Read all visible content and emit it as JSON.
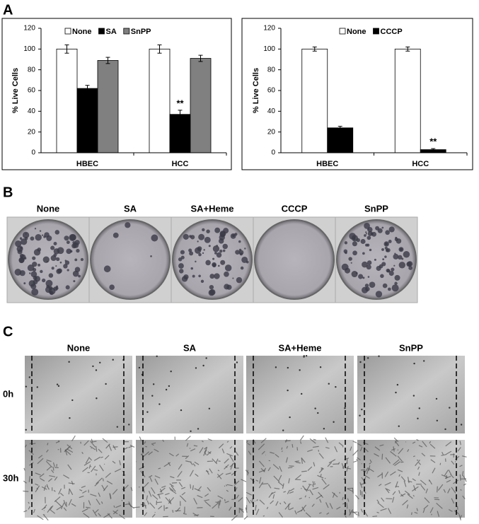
{
  "panel_labels": [
    "A",
    "B",
    "C"
  ],
  "chart_data": [
    {
      "type": "bar",
      "y_label": "% Live Cells",
      "categories": [
        "HBEC",
        "HCC"
      ],
      "series": [
        {
          "name": "None",
          "color": "#ffffff",
          "values": [
            100,
            100
          ],
          "errors": [
            4,
            4
          ]
        },
        {
          "name": "SA",
          "color": "#000000",
          "values": [
            62,
            37
          ],
          "errors": [
            3,
            4
          ]
        },
        {
          "name": "SnPP",
          "color": "#808080",
          "values": [
            89,
            91
          ],
          "errors": [
            3,
            3
          ]
        }
      ],
      "ylim": [
        0,
        120
      ],
      "yticks": [
        0,
        20,
        40,
        60,
        80,
        100,
        120
      ],
      "annotations": [
        "**"
      ],
      "legend": "top"
    },
    {
      "type": "bar",
      "y_label": "% Live Cells",
      "categories": [
        "HBEC",
        "HCC"
      ],
      "series": [
        {
          "name": "None",
          "color": "#ffffff",
          "values": [
            100,
            100
          ],
          "errors": [
            2,
            2
          ]
        },
        {
          "name": "CCCP",
          "color": "#000000",
          "values": [
            24,
            3
          ],
          "errors": [
            1.5,
            1
          ]
        }
      ],
      "ylim": [
        0,
        120
      ],
      "yticks": [
        0,
        20,
        40,
        60,
        80,
        100,
        120
      ],
      "annotations": [
        "**"
      ],
      "legend": "top"
    }
  ],
  "panel_b": {
    "labels": [
      "None",
      "SA",
      "SA+Heme",
      "CCCP",
      "SnPP"
    ]
  },
  "panel_c": {
    "columns": [
      "None",
      "SA",
      "SA+Heme",
      "SnPP"
    ],
    "rows": [
      "0h",
      "30h"
    ]
  }
}
